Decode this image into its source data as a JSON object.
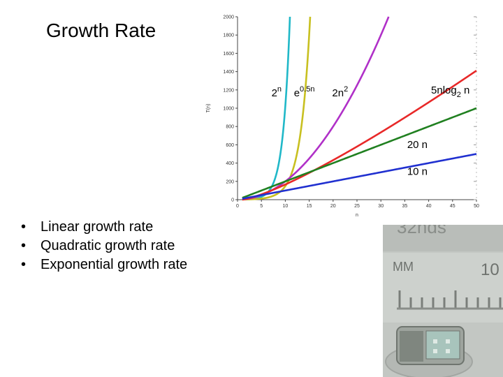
{
  "slide": {
    "title": "Growth Rate",
    "bullets": [
      "Linear growth rate",
      "Quadratic growth rate",
      "Exponential growth rate"
    ]
  },
  "photo": {
    "ruler_unit_label": "MM",
    "ruler_number": "10",
    "top_text_fragment": "32nds"
  },
  "chart_data": {
    "type": "line",
    "xlabel": "n",
    "ylabel": "T(n)",
    "xlim": [
      0,
      50
    ],
    "ylim": [
      0,
      2000
    ],
    "xticks": [
      0,
      5,
      10,
      15,
      20,
      25,
      30,
      35,
      40,
      45,
      50
    ],
    "yticks": [
      0,
      200,
      400,
      600,
      800,
      1000,
      1200,
      1400,
      1600,
      1800,
      2000
    ],
    "series": [
      {
        "name": "2^n",
        "label_base": "2",
        "label_sup": "n",
        "sub": "",
        "sub_tail": "",
        "color": "#20b8c8",
        "fn": "pow2",
        "label_x": 7.1,
        "label_y": 1130
      },
      {
        "name": "e^0.5n",
        "label_base": "e",
        "label_sup": "0.5n",
        "sub": "",
        "sub_tail": "",
        "color": "#c8c020",
        "fn": "exp05",
        "label_x": 11.8,
        "label_y": 1130
      },
      {
        "name": "2n^2",
        "label_base": "2n",
        "label_sup": "2",
        "sub": "",
        "sub_tail": "",
        "color": "#b030c8",
        "fn": "sq2",
        "label_x": 19.8,
        "label_y": 1130
      },
      {
        "name": "5nlog2 n",
        "label_base": "5nlog",
        "label_sup": "",
        "sub": "2",
        "sub_tail": " n",
        "color": "#e82828",
        "fn": "nlog",
        "label_x": 40.5,
        "label_y": 1160
      },
      {
        "name": "20 n",
        "label_base": "20 n",
        "label_sup": "",
        "sub": "",
        "sub_tail": "",
        "color": "#208020",
        "fn": "lin20",
        "label_x": 35.5,
        "label_y": 565
      },
      {
        "name": "10 n",
        "label_base": "10 n",
        "label_sup": "",
        "sub": "",
        "sub_tail": "",
        "color": "#2030d0",
        "fn": "lin10",
        "label_x": 35.5,
        "label_y": 270
      }
    ]
  }
}
